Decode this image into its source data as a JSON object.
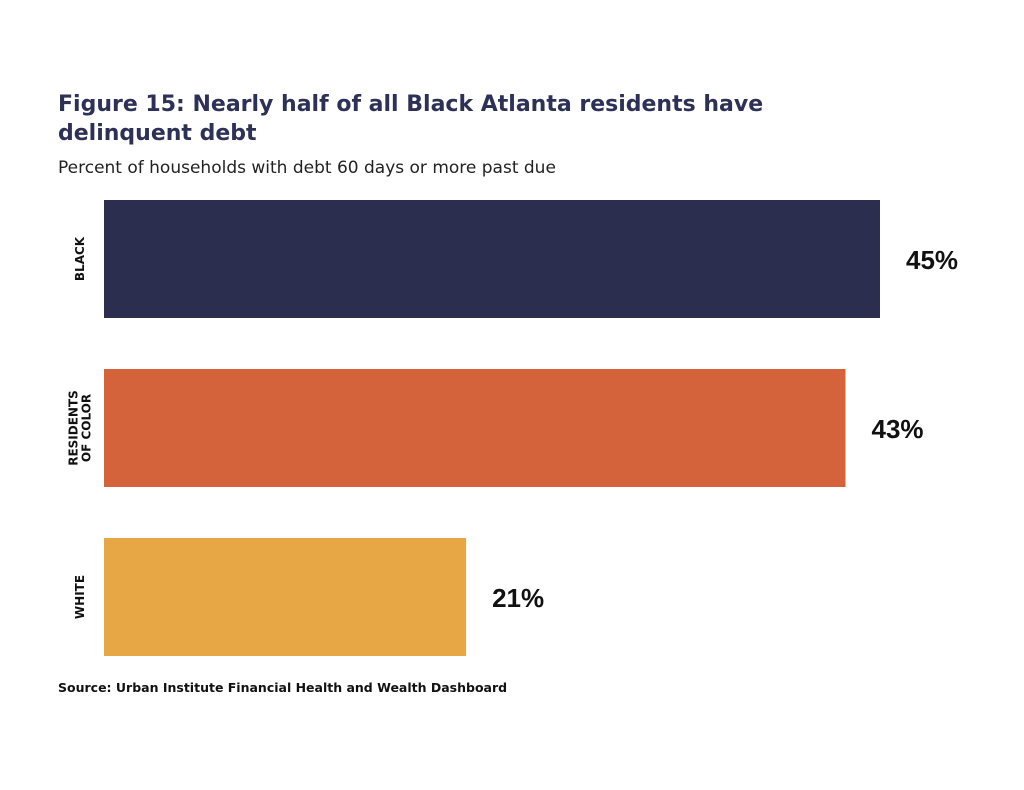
{
  "chart_data": {
    "type": "bar",
    "orientation": "horizontal",
    "title": "Figure 15: Nearly half of all Black Atlanta residents have delinquent debt",
    "subtitle": "Percent of households with debt 60 days or more past due",
    "source": "Source: Urban Institute Financial Health and Wealth Dashboard",
    "categories": [
      [
        "BLACK"
      ],
      [
        "RESIDENTS",
        "OF COLOR"
      ],
      [
        "WHITE"
      ]
    ],
    "values": [
      45,
      43,
      21
    ],
    "value_labels": [
      "45%",
      "43%",
      "21%"
    ],
    "colors": [
      "#2b2e4f",
      "#d4633c",
      "#e6a744"
    ],
    "xlim": [
      0,
      45
    ],
    "grid": false,
    "legend": "none"
  }
}
